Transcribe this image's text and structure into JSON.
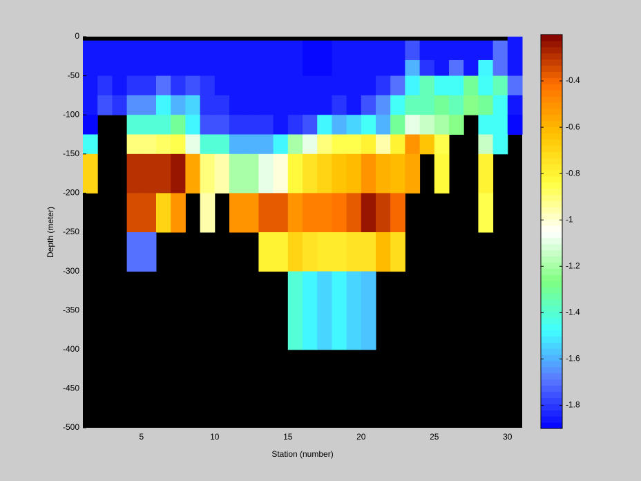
{
  "chart_data": {
    "type": "heatmap",
    "xlabel": "Station (number)",
    "ylabel": "Depth (meter)",
    "x_edges": [
      1,
      2,
      3,
      4,
      5,
      6,
      7,
      8,
      9,
      10,
      11,
      12,
      13,
      14,
      15,
      16,
      17,
      18,
      19,
      20,
      21,
      22,
      23,
      24,
      25,
      26,
      27,
      28,
      29,
      30,
      31
    ],
    "y_edges": [
      0,
      -5,
      -30,
      -50,
      -75,
      -100,
      -125,
      -150,
      -200,
      -250,
      -300,
      -400,
      -500
    ],
    "xlim": [
      1,
      31
    ],
    "ylim": [
      -500,
      0
    ],
    "xticks": [
      5,
      10,
      15,
      20,
      25,
      30
    ],
    "yticks": [
      0,
      -50,
      -100,
      -150,
      -200,
      -250,
      -300,
      -350,
      -400,
      -450,
      -500
    ],
    "clim": [
      -1.9,
      -0.2
    ],
    "cticks": [
      -1.8,
      -1.6,
      -1.4,
      -1.2,
      -1,
      -0.8,
      -0.6,
      -0.4
    ],
    "colormap": [
      "#0000ff",
      "#5a78ff",
      "#40ffff",
      "#80ff80",
      "#ffffff",
      "#ffff40",
      "#ffc000",
      "#ff7000",
      "#800000"
    ],
    "nan_color": "#000000",
    "values": [
      [
        null,
        null,
        null,
        null,
        null,
        null,
        null,
        null,
        null,
        null,
        null,
        null,
        null,
        null,
        null,
        null,
        null,
        null,
        null,
        null,
        null,
        null,
        null,
        null,
        null,
        null,
        null,
        null,
        null,
        -1.85
      ],
      [
        -1.85,
        -1.85,
        -1.85,
        -1.85,
        -1.85,
        -1.85,
        -1.85,
        -1.85,
        -1.85,
        -1.85,
        -1.85,
        -1.85,
        -1.85,
        -1.85,
        -1.85,
        -1.9,
        -1.9,
        -1.85,
        -1.85,
        -1.85,
        -1.85,
        -1.85,
        -1.75,
        -1.85,
        -1.85,
        -1.85,
        -1.85,
        -1.85,
        -1.7,
        -1.85
      ],
      [
        -1.85,
        -1.85,
        -1.85,
        -1.85,
        -1.85,
        -1.85,
        -1.85,
        -1.85,
        -1.85,
        -1.85,
        -1.85,
        -1.85,
        -1.85,
        -1.85,
        -1.85,
        -1.9,
        -1.9,
        -1.85,
        -1.85,
        -1.85,
        -1.85,
        -1.85,
        -1.6,
        -1.8,
        -1.85,
        -1.7,
        -1.85,
        -1.5,
        -1.7,
        -1.85
      ],
      [
        -1.85,
        -1.8,
        -1.85,
        -1.8,
        -1.8,
        -1.7,
        -1.8,
        -1.75,
        -1.8,
        -1.85,
        -1.85,
        -1.85,
        -1.85,
        -1.85,
        -1.85,
        -1.85,
        -1.85,
        -1.85,
        -1.85,
        -1.85,
        -1.8,
        -1.7,
        -1.5,
        -1.35,
        -1.45,
        -1.45,
        -1.3,
        -1.45,
        -1.35,
        -1.7
      ],
      [
        -1.85,
        -1.75,
        -1.8,
        -1.65,
        -1.65,
        -1.5,
        -1.6,
        -1.55,
        -1.8,
        -1.8,
        -1.85,
        -1.85,
        -1.85,
        -1.85,
        -1.85,
        -1.85,
        -1.85,
        -1.8,
        -1.85,
        -1.75,
        -1.65,
        -1.45,
        -1.35,
        -1.35,
        -1.3,
        -1.35,
        -1.25,
        -1.3,
        -1.45,
        -1.85
      ],
      [
        -1.9,
        null,
        null,
        -1.4,
        -1.4,
        -1.4,
        -1.3,
        -1.5,
        -1.75,
        -1.75,
        -1.8,
        -1.8,
        -1.8,
        -1.85,
        -1.8,
        -1.75,
        -1.5,
        -1.6,
        -1.55,
        -1.45,
        -1.6,
        -1.3,
        -1.1,
        -1.15,
        -1.2,
        -1.25,
        null,
        -1.45,
        -1.45,
        -1.9
      ],
      [
        -1.45,
        null,
        null,
        -0.9,
        -0.9,
        -0.88,
        -0.85,
        -1.1,
        -1.4,
        -1.4,
        -1.6,
        -1.6,
        -1.6,
        -1.5,
        -1.2,
        -1.1,
        -0.9,
        -0.85,
        -0.85,
        -0.8,
        -0.95,
        -0.8,
        -0.5,
        -0.65,
        -0.85,
        null,
        null,
        -1.15,
        -1.45,
        null
      ],
      [
        -0.7,
        null,
        null,
        -0.3,
        -0.3,
        -0.28,
        -0.24,
        -0.55,
        -0.9,
        -0.95,
        -1.2,
        -1.2,
        -1.1,
        -1,
        -0.82,
        -0.75,
        -0.68,
        -0.65,
        -0.6,
        -0.5,
        -0.58,
        -0.6,
        -0.55,
        null,
        -0.82,
        null,
        null,
        -0.8,
        null,
        null
      ],
      [
        null,
        null,
        null,
        -0.35,
        -0.35,
        -0.7,
        -0.5,
        null,
        -0.97,
        null,
        -0.5,
        -0.5,
        -0.37,
        -0.37,
        -0.5,
        -0.45,
        -0.45,
        -0.42,
        -0.38,
        -0.25,
        -0.32,
        -0.4,
        null,
        null,
        null,
        null,
        null,
        -0.85,
        null,
        null
      ],
      [
        null,
        null,
        null,
        -1.7,
        -1.7,
        null,
        null,
        null,
        null,
        null,
        null,
        null,
        -0.8,
        -0.8,
        -0.7,
        -0.75,
        -0.78,
        -0.78,
        -0.75,
        -0.75,
        -0.62,
        -0.72,
        null,
        null,
        null,
        null,
        null,
        null,
        null,
        null
      ],
      [
        null,
        null,
        null,
        null,
        null,
        null,
        null,
        null,
        null,
        null,
        null,
        null,
        null,
        null,
        -1.4,
        -1.48,
        -1.55,
        -1.48,
        -1.55,
        -1.57,
        null,
        null,
        null,
        null,
        null,
        null,
        null,
        null,
        null,
        null
      ],
      [
        null,
        null,
        null,
        null,
        null,
        null,
        null,
        null,
        null,
        null,
        null,
        null,
        null,
        null,
        null,
        null,
        null,
        null,
        null,
        null,
        null,
        null,
        null,
        null,
        null,
        null,
        null,
        null,
        null,
        null
      ]
    ]
  }
}
